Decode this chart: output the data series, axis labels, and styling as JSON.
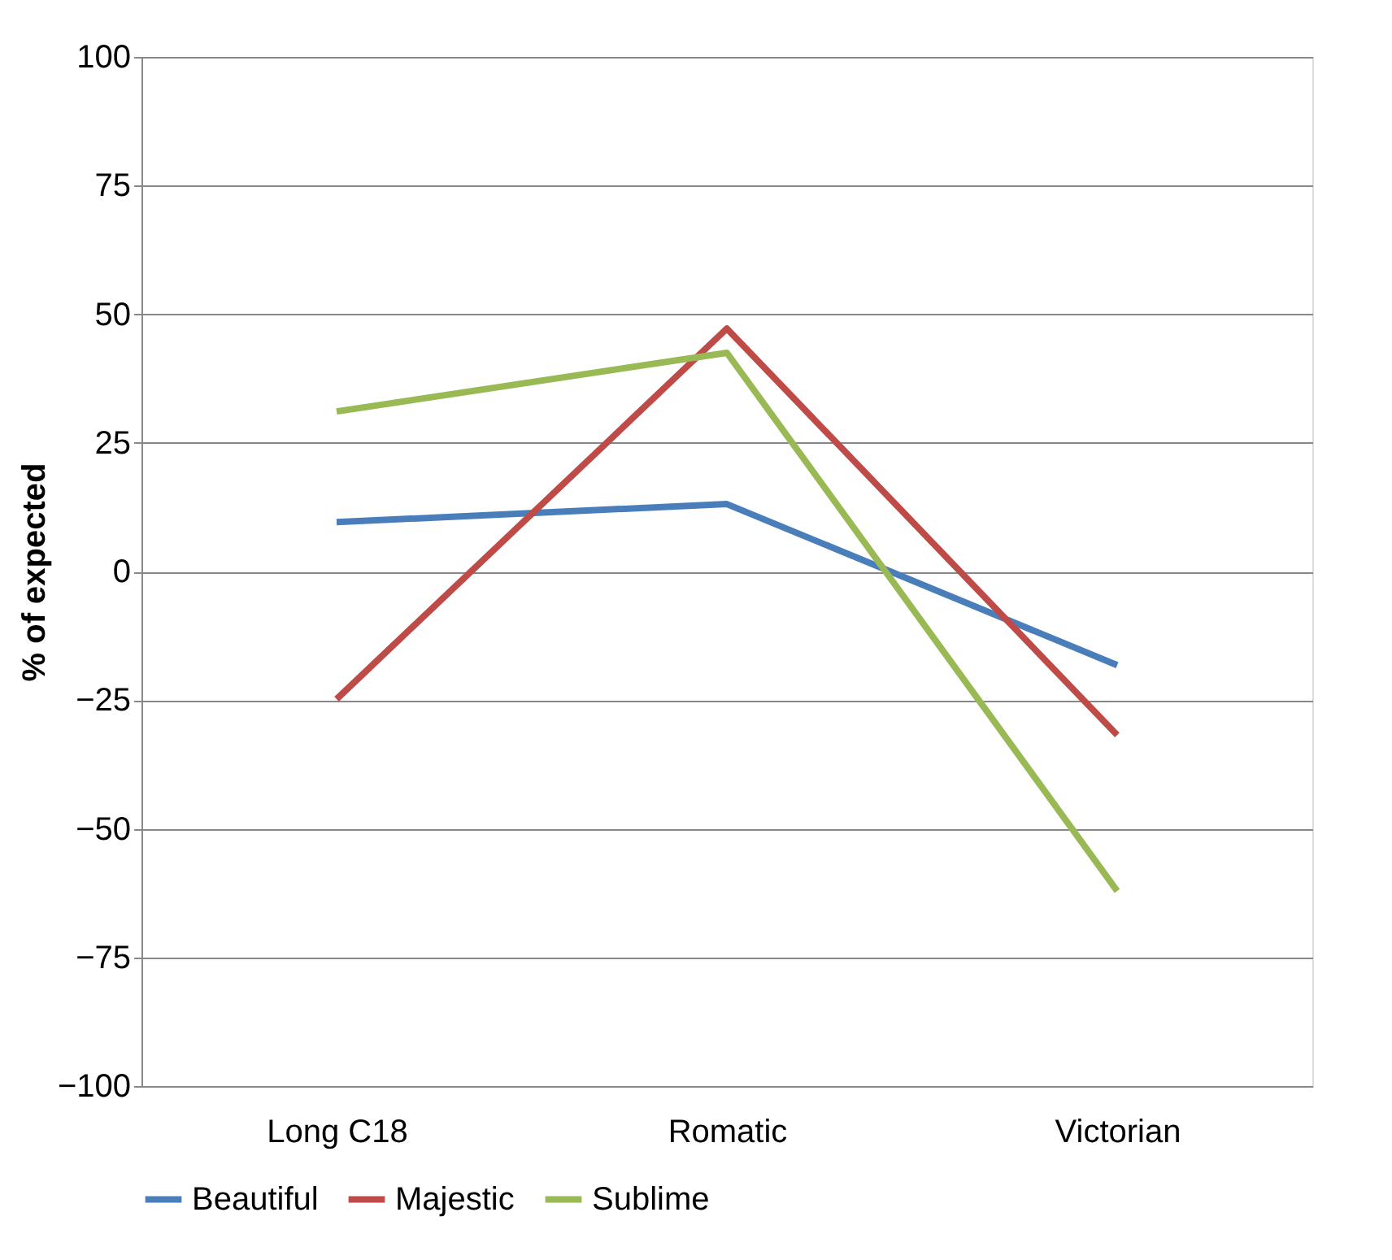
{
  "chart_data": {
    "type": "line",
    "ylabel": "% of expected",
    "categories": [
      "Long C18",
      "Romatic",
      "Victorian"
    ],
    "series": [
      {
        "name": "Beautiful",
        "color": "#4a7ebb",
        "values": [
          9.6,
          13.1,
          -18.2
        ]
      },
      {
        "name": "Majestic",
        "color": "#be4b48",
        "values": [
          -24.8,
          47.2,
          -31.8
        ]
      },
      {
        "name": "Sublime",
        "color": "#98b954",
        "values": [
          31.1,
          42.5,
          -62.1
        ]
      }
    ],
    "ylim": [
      -100,
      100
    ],
    "yticks": [
      -100,
      -75,
      -50,
      -25,
      0,
      25,
      50,
      75,
      100
    ],
    "grid": "y",
    "legend": "bottom",
    "marker": "none",
    "line_style": "solid"
  }
}
